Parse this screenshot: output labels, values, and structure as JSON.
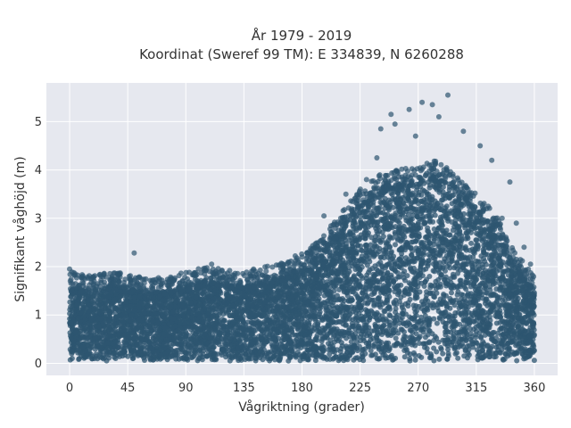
{
  "chart_data": {
    "type": "scatter",
    "title_line1": "År 1979 - 2019",
    "title_line2": "Koordinat (Sweref 99 TM): E 334839, N 6260288",
    "xlabel": "Vågriktning (grader)",
    "ylabel": "Signifikant våghöjd (m)",
    "xlim": [
      -18,
      378
    ],
    "ylim": [
      -0.25,
      5.8
    ],
    "x_ticks": [
      0,
      45,
      90,
      135,
      180,
      225,
      270,
      315,
      360
    ],
    "y_ticks": [
      0,
      1,
      2,
      3,
      4,
      5
    ],
    "grid": true,
    "marker_color": "#2e5570",
    "background": "#e6e8ef",
    "envelope": [
      {
        "x": 0,
        "y": 1.6
      },
      {
        "x": 10,
        "y": 1.55
      },
      {
        "x": 20,
        "y": 1.55
      },
      {
        "x": 30,
        "y": 1.6
      },
      {
        "x": 45,
        "y": 1.55
      },
      {
        "x": 60,
        "y": 1.45
      },
      {
        "x": 75,
        "y": 1.5
      },
      {
        "x": 90,
        "y": 1.6
      },
      {
        "x": 105,
        "y": 1.7
      },
      {
        "x": 120,
        "y": 1.65
      },
      {
        "x": 135,
        "y": 1.6
      },
      {
        "x": 150,
        "y": 1.7
      },
      {
        "x": 165,
        "y": 1.8
      },
      {
        "x": 180,
        "y": 2.0
      },
      {
        "x": 195,
        "y": 2.3
      },
      {
        "x": 210,
        "y": 2.8
      },
      {
        "x": 225,
        "y": 3.3
      },
      {
        "x": 240,
        "y": 3.6
      },
      {
        "x": 255,
        "y": 3.7
      },
      {
        "x": 270,
        "y": 3.8
      },
      {
        "x": 285,
        "y": 3.9
      },
      {
        "x": 300,
        "y": 3.6
      },
      {
        "x": 315,
        "y": 3.2
      },
      {
        "x": 330,
        "y": 2.8
      },
      {
        "x": 345,
        "y": 2.0
      },
      {
        "x": 355,
        "y": 1.7
      },
      {
        "x": 360,
        "y": 1.5
      }
    ],
    "outliers": [
      {
        "x": 293,
        "y": 5.55
      },
      {
        "x": 273,
        "y": 5.4
      },
      {
        "x": 281,
        "y": 5.35
      },
      {
        "x": 263,
        "y": 5.25
      },
      {
        "x": 249,
        "y": 5.15
      },
      {
        "x": 252,
        "y": 4.95
      },
      {
        "x": 286,
        "y": 5.1
      },
      {
        "x": 305,
        "y": 4.8
      },
      {
        "x": 241,
        "y": 4.85
      },
      {
        "x": 268,
        "y": 4.7
      },
      {
        "x": 318,
        "y": 4.5
      },
      {
        "x": 327,
        "y": 4.2
      },
      {
        "x": 238,
        "y": 4.25
      },
      {
        "x": 230,
        "y": 3.8
      },
      {
        "x": 214,
        "y": 3.5
      },
      {
        "x": 341,
        "y": 3.75
      },
      {
        "x": 197,
        "y": 3.05
      },
      {
        "x": 210,
        "y": 3.0
      },
      {
        "x": 352,
        "y": 2.4
      },
      {
        "x": 357,
        "y": 2.05
      },
      {
        "x": 50,
        "y": 2.28
      },
      {
        "x": 0,
        "y": 1.95
      },
      {
        "x": 110,
        "y": 2.05
      },
      {
        "x": 180,
        "y": 2.2
      },
      {
        "x": 335,
        "y": 3.0
      },
      {
        "x": 346,
        "y": 2.9
      }
    ]
  }
}
